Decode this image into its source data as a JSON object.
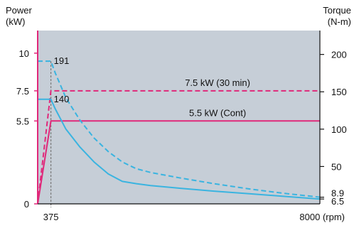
{
  "chart_data": {
    "type": "line",
    "x_range": [
      0,
      8000
    ],
    "x_ticks": [
      {
        "value": 375,
        "label": "375"
      },
      {
        "value": 8000,
        "label": "8000 (rpm)"
      }
    ],
    "left_axis": {
      "label_lines": [
        "Power",
        "(kW)"
      ],
      "range": [
        0,
        11.5
      ],
      "ticks": [
        {
          "value": 0,
          "label": "0"
        },
        {
          "value": 5.5,
          "label": "5.5"
        },
        {
          "value": 7.5,
          "label": "7.5"
        },
        {
          "value": 10,
          "label": "10"
        }
      ]
    },
    "right_axis": {
      "label_lines": [
        "Torque",
        "(N-m)"
      ],
      "range": [
        0,
        232
      ],
      "ticks": [
        {
          "value": 6.5,
          "label": "6.5"
        },
        {
          "value": 8.9,
          "label": "8.9"
        },
        {
          "value": 50,
          "label": "50"
        },
        {
          "value": 100,
          "label": "100"
        },
        {
          "value": 150,
          "label": "150"
        },
        {
          "value": 200,
          "label": "200"
        }
      ]
    },
    "series": [
      {
        "name": "7.5 kW (30 min)",
        "axis": "left",
        "style": "dashed",
        "color": "#e0287a",
        "points": [
          [
            0,
            0
          ],
          [
            375,
            7.5
          ],
          [
            8000,
            7.5
          ]
        ]
      },
      {
        "name": "5.5 kW (Cont)",
        "axis": "left",
        "style": "solid",
        "color": "#e0287a",
        "points": [
          [
            0,
            0
          ],
          [
            375,
            5.5
          ],
          [
            8000,
            5.5
          ]
        ]
      },
      {
        "axis": "right",
        "style": "dashed",
        "color": "#3ab4e0",
        "points": [
          [
            0,
            191
          ],
          [
            375,
            191
          ],
          [
            500,
            175
          ],
          [
            800,
            142
          ],
          [
            1200,
            112
          ],
          [
            1600,
            88
          ],
          [
            2000,
            70
          ],
          [
            2400,
            56
          ],
          [
            2800,
            47
          ],
          [
            3200,
            42
          ],
          [
            4000,
            35
          ],
          [
            5000,
            27
          ],
          [
            6000,
            20
          ],
          [
            7000,
            14
          ],
          [
            8000,
            8.9
          ]
        ]
      },
      {
        "axis": "right",
        "style": "solid",
        "color": "#3ab4e0",
        "points": [
          [
            0,
            140
          ],
          [
            375,
            140
          ],
          [
            500,
            127
          ],
          [
            800,
            100
          ],
          [
            1200,
            76
          ],
          [
            1600,
            56
          ],
          [
            2000,
            40
          ],
          [
            2400,
            30
          ],
          [
            2800,
            27
          ],
          [
            3200,
            24.5
          ],
          [
            4000,
            21
          ],
          [
            5000,
            17
          ],
          [
            6000,
            13.5
          ],
          [
            7000,
            10
          ],
          [
            8000,
            6.5
          ]
        ]
      }
    ],
    "annotations": [
      {
        "text": "191",
        "x": 375,
        "y": 191,
        "axis": "right"
      },
      {
        "text": "140",
        "x": 375,
        "y": 140,
        "axis": "right"
      }
    ],
    "colors": {
      "plot_background": "#c6ced7",
      "power": "#e0287a",
      "torque": "#3ab4e0",
      "reference": "#777777"
    }
  }
}
